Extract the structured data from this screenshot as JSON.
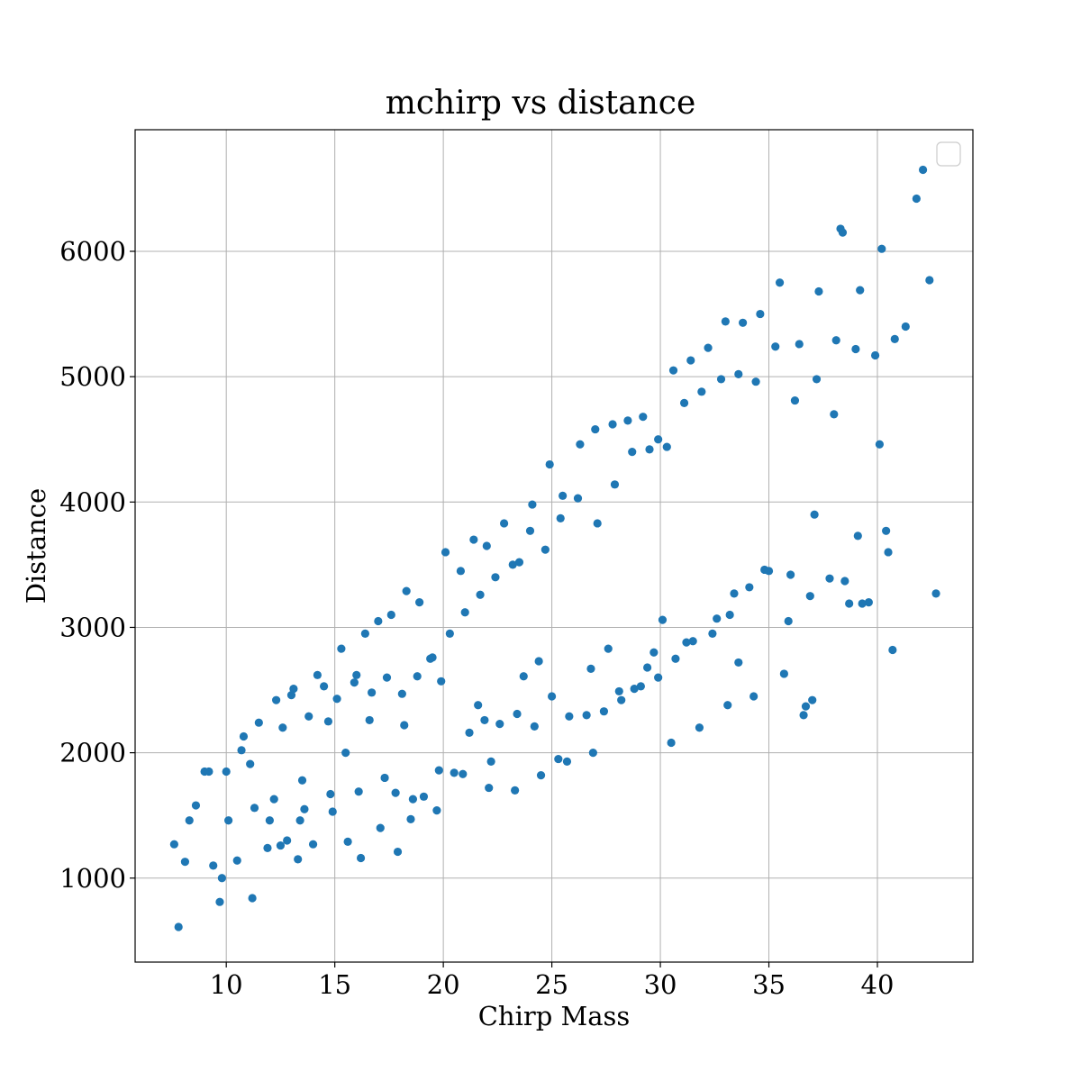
{
  "chart_data": {
    "type": "scatter",
    "title": "mchirp vs distance",
    "xlabel": "Chirp Mass",
    "ylabel": "Distance",
    "xlim": [
      5.8,
      44.4
    ],
    "ylim": [
      330,
      6970
    ],
    "xticks": [
      10,
      15,
      20,
      25,
      30,
      35,
      40
    ],
    "yticks": [
      1000,
      2000,
      3000,
      4000,
      5000,
      6000
    ],
    "xtick_labels": [
      "10",
      "15",
      "20",
      "25",
      "30",
      "35",
      "40"
    ],
    "ytick_labels": [
      "1000",
      "2000",
      "3000",
      "4000",
      "5000",
      "6000"
    ],
    "grid": true,
    "legend": {
      "placement": "top-right",
      "entries": []
    },
    "marker_color": "#1f77b4",
    "series": [
      {
        "x": [
          7.8,
          7.6,
          8.3,
          9.0,
          9.7,
          10.1,
          10.8,
          11.2,
          12.0,
          12.6,
          13.1,
          13.5,
          14.2,
          14.7,
          15.3,
          16.0,
          16.4,
          17.0,
          17.6,
          18.3,
          18.9,
          19.4,
          20.1,
          20.8,
          21.4,
          22.0,
          22.8,
          23.5,
          24.1,
          24.9,
          25.5,
          26.3,
          27.0,
          27.8,
          28.5,
          29.2,
          29.9,
          30.6,
          31.4,
          32.2,
          33.0,
          33.8,
          34.6,
          35.5,
          36.4,
          37.3,
          38.3,
          39.2,
          40.2,
          41.3,
          42.1,
          41.8,
          38.4,
          40.1,
          42.4,
          42.7,
          40.7,
          37.1,
          36.6,
          33.6,
          9.4,
          10.5,
          11.1,
          11.9,
          12.8,
          13.4,
          14.0,
          14.9,
          15.6,
          16.2,
          17.1,
          17.8,
          18.5,
          19.1,
          19.8,
          20.5,
          21.2,
          21.9,
          22.6,
          23.4,
          24.2,
          25.0,
          25.8,
          26.6,
          27.4,
          28.2,
          29.1,
          29.9,
          30.7,
          31.5,
          32.4,
          33.2,
          34.1,
          35.0,
          36.0,
          36.9,
          37.8,
          38.7,
          39.6,
          40.5,
          8.6,
          9.2,
          10.0,
          10.7,
          11.5,
          12.3,
          13.0,
          13.8,
          14.5,
          15.1,
          15.9,
          16.7,
          17.4,
          18.1,
          18.8,
          19.5,
          20.3,
          21.0,
          21.7,
          22.4,
          23.2,
          24.0,
          24.7,
          25.4,
          26.2,
          27.1,
          27.9,
          28.7,
          29.5,
          30.3,
          31.1,
          31.9,
          32.8,
          33.6,
          34.4,
          35.3,
          36.2,
          37.2,
          38.1,
          39.0,
          39.9,
          40.8,
          9.8,
          11.3,
          12.5,
          13.6,
          14.8,
          16.1,
          17.3,
          18.6,
          19.7,
          20.9,
          22.1,
          23.3,
          24.5,
          25.7,
          26.9,
          28.1,
          29.4,
          30.5,
          31.8,
          33.1,
          34.3,
          35.7,
          37.0,
          38.5,
          39.3,
          40.4,
          8.1,
          12.2,
          15.5,
          18.2,
          21.6,
          24.4,
          27.6,
          30.1,
          33.4,
          36.7,
          16.6,
          19.9,
          23.7,
          26.8,
          29.7,
          32.6,
          35.9,
          39.1,
          13.3,
          17.9,
          22.2,
          25.3,
          28.8,
          31.2,
          34.8,
          38.0
        ],
        "y": [
          610,
          1270,
          1460,
          1850,
          810,
          1460,
          2130,
          840,
          1460,
          2200,
          2510,
          1780,
          2620,
          2250,
          2830,
          2620,
          2950,
          3050,
          3100,
          3290,
          3200,
          2750,
          3600,
          3450,
          3700,
          3650,
          3830,
          3520,
          3980,
          4300,
          4050,
          4460,
          4580,
          4620,
          4650,
          4680,
          4500,
          5050,
          5130,
          5230,
          5440,
          5430,
          5500,
          5750,
          5260,
          5680,
          6180,
          5690,
          6020,
          5400,
          6650,
          6420,
          6150,
          4460,
          5770,
          3270,
          2820,
          3900,
          2300,
          2720,
          1100,
          1140,
          1910,
          1240,
          1300,
          1460,
          1270,
          1530,
          1290,
          1160,
          1400,
          1680,
          1470,
          1650,
          1860,
          1840,
          2160,
          2260,
          2230,
          2310,
          2210,
          2450,
          2290,
          2300,
          2330,
          2420,
          2530,
          2600,
          2750,
          2890,
          2950,
          3100,
          3320,
          3450,
          3420,
          3250,
          3390,
          3190,
          3200,
          3600,
          1580,
          1850,
          1850,
          2020,
          2240,
          2420,
          2460,
          2290,
          2530,
          2430,
          2560,
          2480,
          2600,
          2470,
          2610,
          2760,
          2950,
          3120,
          3260,
          3400,
          3500,
          3770,
          3620,
          3870,
          4030,
          3830,
          4140,
          4400,
          4420,
          4440,
          4790,
          4880,
          4980,
          5020,
          4960,
          5240,
          4810,
          4980,
          5290,
          5220,
          5170,
          5300,
          1000,
          1560,
          1260,
          1550,
          1670,
          1690,
          1800,
          1630,
          1540,
          1830,
          1720,
          1700,
          1820,
          1930,
          2000,
          2490,
          2680,
          2080,
          2200,
          2380,
          2450,
          2630,
          2420,
          3370,
          3190,
          3770,
          1130,
          1630,
          2000,
          2220,
          2380,
          2730,
          2830,
          3060,
          3270,
          2370,
          2260,
          2570,
          2610,
          2670,
          2800,
          3070,
          3050,
          3730,
          1150,
          1210,
          1930,
          1950,
          2510,
          2880,
          3460,
          4700
        ]
      }
    ]
  }
}
